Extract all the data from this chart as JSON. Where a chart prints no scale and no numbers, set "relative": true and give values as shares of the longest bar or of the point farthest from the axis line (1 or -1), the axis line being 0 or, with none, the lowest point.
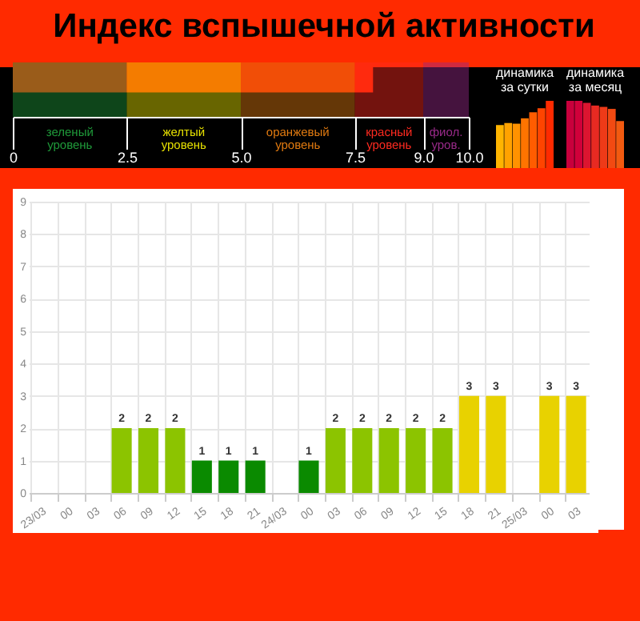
{
  "chart_data": [
    {
      "type": "bar",
      "title": "Индекс вспышечной активности",
      "orientation": "horizontal",
      "categories": [
        null
      ],
      "values": [
        7.9
      ],
      "color": "#ff2a00",
      "xlim": [
        0,
        10
      ],
      "xticks": [
        0,
        2.5,
        {
          "value": 5,
          "label": "5.0"
        },
        7.5,
        {
          "value": 9,
          "label": "9.0"
        },
        {
          "value": 10,
          "label": "10.0"
        }
      ],
      "bands": [
        {
          "axis": "x",
          "from": 0,
          "to": 2.5,
          "label": "зеленый уровень",
          "color": "#1f9a3a"
        },
        {
          "axis": "x",
          "from": 2.5,
          "to": 5,
          "label": "желтый уровень",
          "color": "#e6e000"
        },
        {
          "axis": "x",
          "from": 5,
          "to": 7.5,
          "label": "оранжевый уровень",
          "color": "#e07a10"
        },
        {
          "axis": "x",
          "from": 7.5,
          "to": 9,
          "label": "красный уровень",
          "color": "#ff2a20"
        },
        {
          "axis": "x",
          "from": 9,
          "to": 10,
          "label": "фиол. уров.",
          "color": "#9a2a8a"
        }
      ]
    },
    {
      "type": "bar",
      "title": "динамика за сутки",
      "relative": true,
      "categories": [
        null,
        null,
        null,
        null,
        null,
        null,
        null
      ],
      "values": [
        0.64,
        0.67,
        0.66,
        0.74,
        0.83,
        0.89,
        1
      ],
      "colors": [
        "#ffb400",
        "#ffa200",
        "#ff9200",
        "#ff7400",
        "#ff5c00",
        "#ff4400",
        "#ff2a00"
      ]
    },
    {
      "type": "bar",
      "title": "динамика за месяц",
      "relative": true,
      "categories": [
        null,
        null,
        null,
        null,
        null,
        null,
        null
      ],
      "values": [
        1,
        1,
        0.97,
        0.93,
        0.91,
        0.88,
        0.7
      ],
      "colors": [
        "#c8003c",
        "#d0003a",
        "#dc1530",
        "#e82a22",
        "#ee3a18",
        "#f24a12",
        "#f25a10"
      ]
    },
    {
      "type": "bar",
      "categories": [
        "23/03",
        "00",
        "03",
        "06",
        "09",
        "12",
        "15",
        "18",
        "21",
        "24/03",
        "00",
        "03",
        "06",
        "09",
        "12",
        "15",
        "18",
        "21",
        "25/03",
        "00",
        "03"
      ],
      "values": [
        0,
        0,
        0,
        2,
        2,
        2,
        1,
        1,
        1,
        0,
        1,
        2,
        2,
        2,
        2,
        2,
        3,
        3,
        0,
        3,
        3
      ],
      "colors": [
        "#0a8a00",
        "#0a8a00",
        "#0a8a00",
        "#8cc400",
        "#8cc400",
        "#8cc400",
        "#0a8a00",
        "#0a8a00",
        "#0a8a00",
        "#0a8a00",
        "#0a8a00",
        "#8cc400",
        "#8cc400",
        "#8cc400",
        "#8cc400",
        "#8cc400",
        "#e8d200",
        "#e8d200",
        "#0a8a00",
        "#e8d200",
        "#e8d200"
      ],
      "value_labels": [
        null,
        null,
        null,
        "2",
        "2",
        "2",
        "1",
        "1",
        "1",
        null,
        "1",
        "2",
        "2",
        "2",
        "2",
        "2",
        "3",
        "3",
        null,
        "3",
        "3"
      ],
      "ylim": [
        0,
        9
      ],
      "yticks": [
        0,
        1,
        2,
        3,
        4,
        5,
        6,
        7,
        8,
        9
      ],
      "grid": true
    }
  ]
}
